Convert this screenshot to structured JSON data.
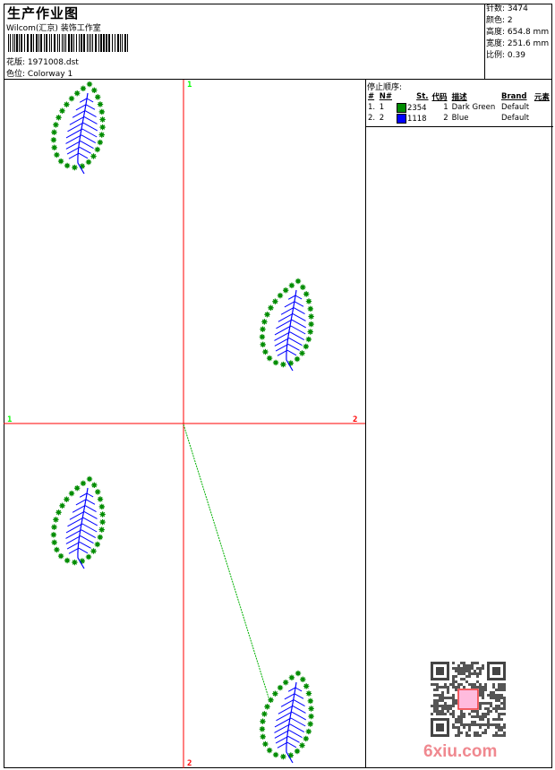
{
  "header": {
    "title": "生产作业图",
    "company": "Wilcom(汇京) 装饰工作室",
    "design_label": "花版:",
    "design_value": "1971008.dst",
    "colorway_label": "色位:",
    "colorway_value": "Colorway 1"
  },
  "stats": [
    {
      "label": "针数:",
      "value": "3474"
    },
    {
      "label": "颜色:",
      "value": "2"
    },
    {
      "label": "高度:",
      "value": "654.8 mm"
    },
    {
      "label": "宽度:",
      "value": "251.6 mm"
    },
    {
      "label": "比例:",
      "value": "0.39"
    }
  ],
  "plot": {
    "markers": {
      "v_top": "1",
      "v_bottom": "2",
      "h_left": "1",
      "h_right": "2"
    },
    "colors": {
      "dark_green": "#008c00",
      "blue": "#0000ff",
      "guide": "#ff0000",
      "marker_start": "#00ff00"
    }
  },
  "stop_sequence": {
    "title": "停止顺序:",
    "columns": [
      "#",
      "N#",
      "St.",
      "代码",
      "描述",
      "Brand",
      "元素"
    ],
    "rows": [
      {
        "index": "1.",
        "n": "1",
        "color": "#008c00",
        "stitches": "2354",
        "code": "1",
        "description": "Dark Green",
        "brand": "Default"
      },
      {
        "index": "2.",
        "n": "2",
        "color": "#0000ff",
        "stitches": "1118",
        "code": "2",
        "description": "Blue",
        "brand": "Default"
      }
    ]
  },
  "watermark": {
    "text": "6xiu.com"
  }
}
